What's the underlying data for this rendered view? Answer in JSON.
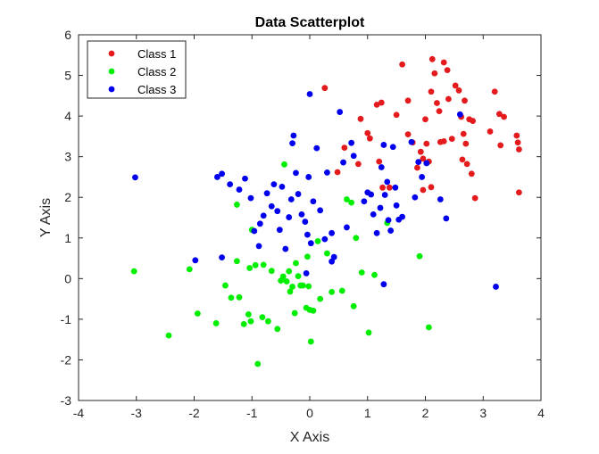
{
  "chart_data": {
    "type": "scatter",
    "title": "Data Scatterplot",
    "xlabel": "X Axis",
    "ylabel": "Y Axis",
    "xlim": [
      -4,
      4
    ],
    "ylim": [
      -3,
      6
    ],
    "xticks": [
      -4,
      -3,
      -2,
      -1,
      0,
      1,
      2,
      3,
      4
    ],
    "yticks": [
      -3,
      -2,
      -1,
      0,
      1,
      2,
      3,
      4,
      5,
      6
    ],
    "grid": false,
    "legend_position": "top-left",
    "series": [
      {
        "name": "Class 1",
        "color": "#e41a1c",
        "points": [
          [
            0.26,
            4.69
          ],
          [
            0.48,
            2.62
          ],
          [
            0.6,
            3.22
          ],
          [
            0.84,
            2.82
          ],
          [
            0.88,
            3.93
          ],
          [
            1.0,
            3.58
          ],
          [
            1.04,
            3.45
          ],
          [
            1.16,
            4.28
          ],
          [
            1.24,
            4.33
          ],
          [
            1.2,
            2.88
          ],
          [
            1.26,
            2.24
          ],
          [
            1.38,
            2.24
          ],
          [
            1.5,
            4.03
          ],
          [
            1.6,
            5.27
          ],
          [
            1.7,
            4.38
          ],
          [
            1.7,
            3.55
          ],
          [
            1.78,
            3.35
          ],
          [
            1.86,
            2.73
          ],
          [
            1.92,
            3.12
          ],
          [
            1.96,
            2.95
          ],
          [
            1.96,
            2.18
          ],
          [
            2.0,
            3.92
          ],
          [
            2.02,
            3.32
          ],
          [
            2.06,
            2.88
          ],
          [
            2.1,
            2.25
          ],
          [
            2.1,
            4.6
          ],
          [
            2.12,
            5.4
          ],
          [
            2.16,
            5.05
          ],
          [
            2.2,
            4.32
          ],
          [
            2.24,
            4.12
          ],
          [
            2.26,
            3.36
          ],
          [
            2.32,
            3.38
          ],
          [
            2.32,
            5.32
          ],
          [
            2.38,
            5.13
          ],
          [
            2.4,
            4.42
          ],
          [
            2.46,
            3.44
          ],
          [
            2.52,
            4.75
          ],
          [
            2.58,
            4.63
          ],
          [
            2.62,
            3.98
          ],
          [
            2.64,
            2.93
          ],
          [
            2.66,
            3.56
          ],
          [
            2.68,
            4.38
          ],
          [
            2.7,
            3.32
          ],
          [
            2.72,
            2.82
          ],
          [
            2.76,
            3.92
          ],
          [
            2.8,
            2.58
          ],
          [
            2.82,
            3.88
          ],
          [
            2.86,
            1.98
          ],
          [
            3.12,
            3.62
          ],
          [
            3.2,
            4.6
          ],
          [
            3.28,
            4.05
          ],
          [
            3.3,
            3.28
          ],
          [
            3.36,
            3.98
          ],
          [
            3.58,
            3.52
          ],
          [
            3.6,
            3.35
          ],
          [
            3.62,
            3.18
          ],
          [
            3.62,
            2.12
          ]
        ]
      },
      {
        "name": "Class 2",
        "color": "#00ee00",
        "points": [
          [
            -3.04,
            0.18
          ],
          [
            -2.44,
            -1.4
          ],
          [
            -2.08,
            0.23
          ],
          [
            -1.94,
            -0.86
          ],
          [
            -1.62,
            -1.1
          ],
          [
            -1.46,
            -0.17
          ],
          [
            -1.36,
            -0.47
          ],
          [
            -1.26,
            0.43
          ],
          [
            -1.26,
            1.82
          ],
          [
            -1.22,
            -0.46
          ],
          [
            -1.14,
            -1.12
          ],
          [
            -1.06,
            -0.88
          ],
          [
            -1.04,
            0.26
          ],
          [
            -1.02,
            -1.05
          ],
          [
            -1.0,
            1.2
          ],
          [
            -0.94,
            0.33
          ],
          [
            -0.9,
            -2.1
          ],
          [
            -0.82,
            -0.95
          ],
          [
            -0.8,
            0.34
          ],
          [
            -0.72,
            -1.05
          ],
          [
            -0.66,
            0.19
          ],
          [
            -0.56,
            -1.24
          ],
          [
            -0.5,
            -0.05
          ],
          [
            -0.46,
            0.05
          ],
          [
            -0.44,
            2.81
          ],
          [
            -0.4,
            -0.07
          ],
          [
            -0.36,
            0.18
          ],
          [
            -0.34,
            -0.32
          ],
          [
            -0.3,
            -0.2
          ],
          [
            -0.26,
            -0.85
          ],
          [
            -0.24,
            0.38
          ],
          [
            -0.2,
            0.06
          ],
          [
            -0.16,
            -0.17
          ],
          [
            -0.12,
            -0.17
          ],
          [
            -0.06,
            -0.72
          ],
          [
            -0.04,
            0.54
          ],
          [
            -0.02,
            -0.19
          ],
          [
            0.0,
            -0.77
          ],
          [
            0.02,
            -1.55
          ],
          [
            0.06,
            -0.79
          ],
          [
            0.14,
            0.92
          ],
          [
            0.18,
            -0.5
          ],
          [
            0.3,
            0.62
          ],
          [
            0.38,
            -0.33
          ],
          [
            0.56,
            -0.3
          ],
          [
            0.64,
            1.95
          ],
          [
            0.72,
            1.87
          ],
          [
            0.76,
            -0.68
          ],
          [
            0.8,
            1.0
          ],
          [
            0.9,
            0.15
          ],
          [
            1.02,
            -1.33
          ],
          [
            1.12,
            0.09
          ],
          [
            1.34,
            1.37
          ],
          [
            1.9,
            0.55
          ],
          [
            2.06,
            -1.2
          ]
        ]
      },
      {
        "name": "Class 3",
        "color": "#0000ee",
        "points": [
          [
            -3.02,
            2.49
          ],
          [
            -1.98,
            0.45
          ],
          [
            -1.6,
            2.5
          ],
          [
            -1.52,
            2.58
          ],
          [
            -1.52,
            0.52
          ],
          [
            -1.38,
            2.32
          ],
          [
            -1.22,
            2.19
          ],
          [
            -1.12,
            2.46
          ],
          [
            -1.02,
            1.98
          ],
          [
            -0.96,
            1.17
          ],
          [
            -0.88,
            0.8
          ],
          [
            -0.86,
            1.35
          ],
          [
            -0.8,
            1.55
          ],
          [
            -0.74,
            2.1
          ],
          [
            -0.66,
            1.78
          ],
          [
            -0.62,
            2.32
          ],
          [
            -0.56,
            1.66
          ],
          [
            -0.52,
            1.2
          ],
          [
            -0.48,
            2.26
          ],
          [
            -0.42,
            0.73
          ],
          [
            -0.36,
            1.51
          ],
          [
            -0.32,
            1.95
          ],
          [
            -0.3,
            3.33
          ],
          [
            -0.28,
            3.52
          ],
          [
            -0.24,
            2.6
          ],
          [
            -0.2,
            2.08
          ],
          [
            -0.14,
            1.58
          ],
          [
            -0.08,
            1.4
          ],
          [
            -0.06,
            0.13
          ],
          [
            -0.04,
            1.08
          ],
          [
            -0.02,
            2.5
          ],
          [
            0.0,
            4.54
          ],
          [
            0.02,
            0.87
          ],
          [
            0.06,
            1.9
          ],
          [
            0.12,
            3.21
          ],
          [
            0.18,
            1.68
          ],
          [
            0.26,
            0.97
          ],
          [
            0.3,
            2.61
          ],
          [
            0.38,
            0.42
          ],
          [
            0.42,
            0.53
          ],
          [
            0.52,
            4.1
          ],
          [
            0.58,
            2.86
          ],
          [
            0.64,
            1.26
          ],
          [
            0.72,
            3.34
          ],
          [
            0.76,
            3.02
          ],
          [
            0.94,
            1.9
          ],
          [
            1.0,
            2.12
          ],
          [
            1.06,
            2.07
          ],
          [
            1.1,
            1.58
          ],
          [
            1.16,
            1.12
          ],
          [
            1.22,
            1.74
          ],
          [
            1.24,
            2.74
          ],
          [
            1.28,
            3.29
          ],
          [
            1.3,
            2.06
          ],
          [
            1.34,
            2.38
          ],
          [
            1.36,
            1.44
          ],
          [
            1.4,
            1.18
          ],
          [
            1.44,
            3.24
          ],
          [
            1.48,
            2.24
          ],
          [
            1.5,
            1.8
          ],
          [
            1.54,
            1.45
          ],
          [
            1.6,
            1.52
          ],
          [
            1.76,
            3.36
          ],
          [
            1.82,
            2.0
          ],
          [
            1.88,
            2.87
          ],
          [
            1.94,
            2.5
          ],
          [
            2.02,
            2.84
          ],
          [
            2.26,
            1.95
          ],
          [
            2.36,
            1.48
          ],
          [
            2.6,
            4.04
          ],
          [
            3.22,
            -0.2
          ],
          [
            1.28,
            -0.14
          ],
          [
            0.38,
            1.12
          ]
        ]
      }
    ]
  }
}
